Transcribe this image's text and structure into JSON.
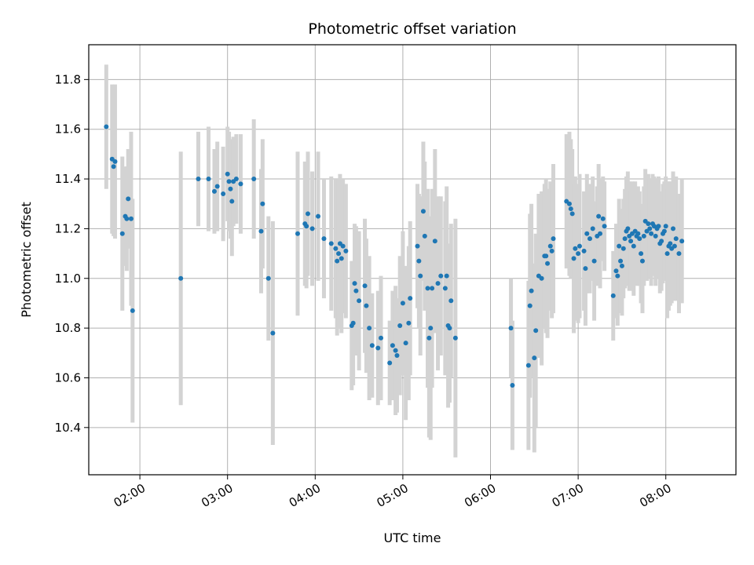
{
  "chart_data": {
    "type": "scatter",
    "title": "Photometric offset variation",
    "xlabel": "UTC time",
    "ylabel": "Photometric offset",
    "x_unit": "minutes since 00:00 UTC",
    "xlim": [
      "01:25",
      "08:48"
    ],
    "ylim": [
      10.21,
      11.94
    ],
    "x_ticks": [
      "02:00",
      "03:00",
      "04:00",
      "05:00",
      "06:00",
      "07:00",
      "08:00"
    ],
    "y_ticks": [
      "10.4",
      "10.6",
      "10.8",
      "11.0",
      "11.2",
      "11.4",
      "11.6",
      "11.8"
    ],
    "grid": true,
    "legend": "none",
    "colors": {
      "point": "#1f77b4",
      "errorbar": "#d3d3d3",
      "grid": "#b0b0b0"
    },
    "series": [
      {
        "points": [
          [
            "01:37",
            11.61,
            0.25
          ],
          [
            "01:41",
            11.48,
            0.3
          ],
          [
            "01:42",
            11.45,
            0.28
          ],
          [
            "01:43",
            11.47,
            0.31
          ],
          [
            "01:48",
            11.18,
            0.31
          ],
          [
            "01:50",
            11.25,
            0.2
          ],
          [
            "01:51",
            11.24,
            0.21
          ],
          [
            "01:52",
            11.32,
            0.2
          ],
          [
            "01:54",
            11.24,
            0.35
          ],
          [
            "01:55",
            10.87,
            0.45
          ],
          [
            "02:28",
            11.0,
            0.51
          ],
          [
            "02:40",
            11.4,
            0.19
          ],
          [
            "02:47",
            11.4,
            0.21
          ],
          [
            "02:51",
            11.35,
            0.17
          ],
          [
            "02:53",
            11.37,
            0.18
          ],
          [
            "02:57",
            11.34,
            0.19
          ],
          [
            "03:00",
            11.42,
            0.19
          ],
          [
            "03:01",
            11.39,
            0.2
          ],
          [
            "03:02",
            11.36,
            0.2
          ],
          [
            "03:03",
            11.31,
            0.22
          ],
          [
            "03:04",
            11.39,
            0.18
          ],
          [
            "03:06",
            11.4,
            0.18
          ],
          [
            "03:09",
            11.38,
            0.2
          ],
          [
            "03:18",
            11.4,
            0.24
          ],
          [
            "03:23",
            11.19,
            0.25
          ],
          [
            "03:24",
            11.3,
            0.26
          ],
          [
            "03:28",
            11.0,
            0.25
          ],
          [
            "03:31",
            10.78,
            0.45
          ],
          [
            "03:48",
            11.18,
            0.33
          ],
          [
            "03:53",
            11.22,
            0.25
          ],
          [
            "03:54",
            11.21,
            0.25
          ],
          [
            "03:55",
            11.26,
            0.25
          ],
          [
            "03:58",
            11.2,
            0.23
          ],
          [
            "04:02",
            11.25,
            0.26
          ],
          [
            "04:06",
            11.16,
            0.24
          ],
          [
            "04:11",
            11.14,
            0.27
          ],
          [
            "04:14",
            11.12,
            0.28
          ],
          [
            "04:15",
            11.07,
            0.3
          ],
          [
            "04:16",
            11.1,
            0.3
          ],
          [
            "04:17",
            11.14,
            0.28
          ],
          [
            "04:18",
            11.08,
            0.3
          ],
          [
            "04:19",
            11.13,
            0.27
          ],
          [
            "04:21",
            11.11,
            0.27
          ],
          [
            "04:25",
            10.81,
            0.26
          ],
          [
            "04:26",
            10.82,
            0.25
          ],
          [
            "04:27",
            10.98,
            0.24
          ],
          [
            "04:28",
            10.95,
            0.26
          ],
          [
            "04:30",
            10.91,
            0.28
          ],
          [
            "04:34",
            10.97,
            0.27
          ],
          [
            "04:35",
            10.89,
            0.27
          ],
          [
            "04:37",
            10.8,
            0.29
          ],
          [
            "04:39",
            10.73,
            0.21
          ],
          [
            "04:43",
            10.72,
            0.23
          ],
          [
            "04:45",
            10.76,
            0.25
          ],
          [
            "04:51",
            10.66,
            0.17
          ],
          [
            "04:53",
            10.73,
            0.22
          ],
          [
            "04:55",
            10.71,
            0.26
          ],
          [
            "04:56",
            10.69,
            0.23
          ],
          [
            "04:58",
            10.81,
            0.28
          ],
          [
            "05:00",
            10.9,
            0.29
          ],
          [
            "05:02",
            10.74,
            0.31
          ],
          [
            "05:04",
            10.82,
            0.31
          ],
          [
            "05:05",
            10.92,
            0.31
          ],
          [
            "05:10",
            11.13,
            0.25
          ],
          [
            "05:11",
            11.07,
            0.27
          ],
          [
            "05:12",
            11.01,
            0.32
          ],
          [
            "05:14",
            11.27,
            0.28
          ],
          [
            "05:15",
            11.17,
            0.3
          ],
          [
            "05:17",
            10.96,
            0.4
          ],
          [
            "05:18",
            10.76,
            0.4
          ],
          [
            "05:19",
            10.8,
            0.45
          ],
          [
            "05:20",
            10.96,
            0.4
          ],
          [
            "05:22",
            11.15,
            0.37
          ],
          [
            "05:24",
            10.98,
            0.35
          ],
          [
            "05:26",
            11.01,
            0.32
          ],
          [
            "05:29",
            10.96,
            0.35
          ],
          [
            "05:30",
            11.01,
            0.36
          ],
          [
            "05:31",
            10.81,
            0.33
          ],
          [
            "05:32",
            10.8,
            0.3
          ],
          [
            "05:33",
            10.91,
            0.31
          ],
          [
            "05:36",
            10.76,
            0.48
          ],
          [
            "06:14",
            10.8,
            0.2
          ],
          [
            "06:15",
            10.57,
            0.26
          ],
          [
            "06:26",
            10.65,
            0.34
          ],
          [
            "06:27",
            10.89,
            0.37
          ],
          [
            "06:28",
            10.95,
            0.35
          ],
          [
            "06:30",
            10.68,
            0.38
          ],
          [
            "06:31",
            10.79,
            0.39
          ],
          [
            "06:33",
            11.01,
            0.33
          ],
          [
            "06:35",
            11.0,
            0.35
          ],
          [
            "06:37",
            11.09,
            0.29
          ],
          [
            "06:38",
            11.09,
            0.31
          ],
          [
            "06:39",
            11.06,
            0.3
          ],
          [
            "06:41",
            11.13,
            0.26
          ],
          [
            "06:42",
            11.11,
            0.27
          ],
          [
            "06:43",
            11.16,
            0.3
          ],
          [
            "06:52",
            11.31,
            0.27
          ],
          [
            "06:54",
            11.3,
            0.29
          ],
          [
            "06:55",
            11.28,
            0.28
          ],
          [
            "06:56",
            11.26,
            0.26
          ],
          [
            "06:57",
            11.08,
            0.3
          ],
          [
            "06:58",
            11.12,
            0.29
          ],
          [
            "07:00",
            11.1,
            0.28
          ],
          [
            "07:01",
            11.13,
            0.29
          ],
          [
            "07:04",
            11.11,
            0.24
          ],
          [
            "07:05",
            11.04,
            0.23
          ],
          [
            "07:06",
            11.18,
            0.24
          ],
          [
            "07:08",
            11.16,
            0.22
          ],
          [
            "07:10",
            11.2,
            0.21
          ],
          [
            "07:11",
            11.07,
            0.24
          ],
          [
            "07:13",
            11.17,
            0.2
          ],
          [
            "07:14",
            11.25,
            0.21
          ],
          [
            "07:15",
            11.18,
            0.22
          ],
          [
            "07:17",
            11.24,
            0.17
          ],
          [
            "07:18",
            11.21,
            0.18
          ],
          [
            "07:24",
            10.93,
            0.18
          ],
          [
            "07:26",
            11.03,
            0.19
          ],
          [
            "07:27",
            11.01,
            0.2
          ],
          [
            "07:28",
            11.13,
            0.19
          ],
          [
            "07:29",
            11.07,
            0.21
          ],
          [
            "07:30",
            11.05,
            0.2
          ],
          [
            "07:31",
            11.12,
            0.2
          ],
          [
            "07:32",
            11.16,
            0.2
          ],
          [
            "07:33",
            11.19,
            0.22
          ],
          [
            "07:34",
            11.2,
            0.23
          ],
          [
            "07:35",
            11.17,
            0.22
          ],
          [
            "07:36",
            11.15,
            0.2
          ],
          [
            "07:37",
            11.18,
            0.21
          ],
          [
            "07:38",
            11.13,
            0.2
          ],
          [
            "07:39",
            11.19,
            0.2
          ],
          [
            "07:40",
            11.17,
            0.2
          ],
          [
            "07:41",
            11.18,
            0.19
          ],
          [
            "07:42",
            11.16,
            0.19
          ],
          [
            "07:43",
            11.1,
            0.2
          ],
          [
            "07:44",
            11.07,
            0.21
          ],
          [
            "07:45",
            11.17,
            0.2
          ],
          [
            "07:46",
            11.23,
            0.21
          ],
          [
            "07:47",
            11.19,
            0.2
          ],
          [
            "07:48",
            11.22,
            0.2
          ],
          [
            "07:49",
            11.2,
            0.2
          ],
          [
            "07:50",
            11.18,
            0.21
          ],
          [
            "07:51",
            11.22,
            0.2
          ],
          [
            "07:52",
            11.21,
            0.2
          ],
          [
            "07:53",
            11.17,
            0.2
          ],
          [
            "07:54",
            11.2,
            0.2
          ],
          [
            "07:55",
            11.21,
            0.2
          ],
          [
            "07:56",
            11.14,
            0.2
          ],
          [
            "07:57",
            11.15,
            0.2
          ],
          [
            "07:58",
            11.18,
            0.2
          ],
          [
            "07:59",
            11.19,
            0.2
          ],
          [
            "08:00",
            11.21,
            0.2
          ],
          [
            "08:01",
            11.1,
            0.26
          ],
          [
            "08:02",
            11.13,
            0.26
          ],
          [
            "08:03",
            11.14,
            0.25
          ],
          [
            "08:04",
            11.12,
            0.22
          ],
          [
            "08:05",
            11.2,
            0.23
          ],
          [
            "08:06",
            11.13,
            0.22
          ],
          [
            "08:07",
            11.16,
            0.25
          ],
          [
            "08:09",
            11.1,
            0.24
          ],
          [
            "08:11",
            11.15,
            0.25
          ]
        ]
      }
    ]
  }
}
